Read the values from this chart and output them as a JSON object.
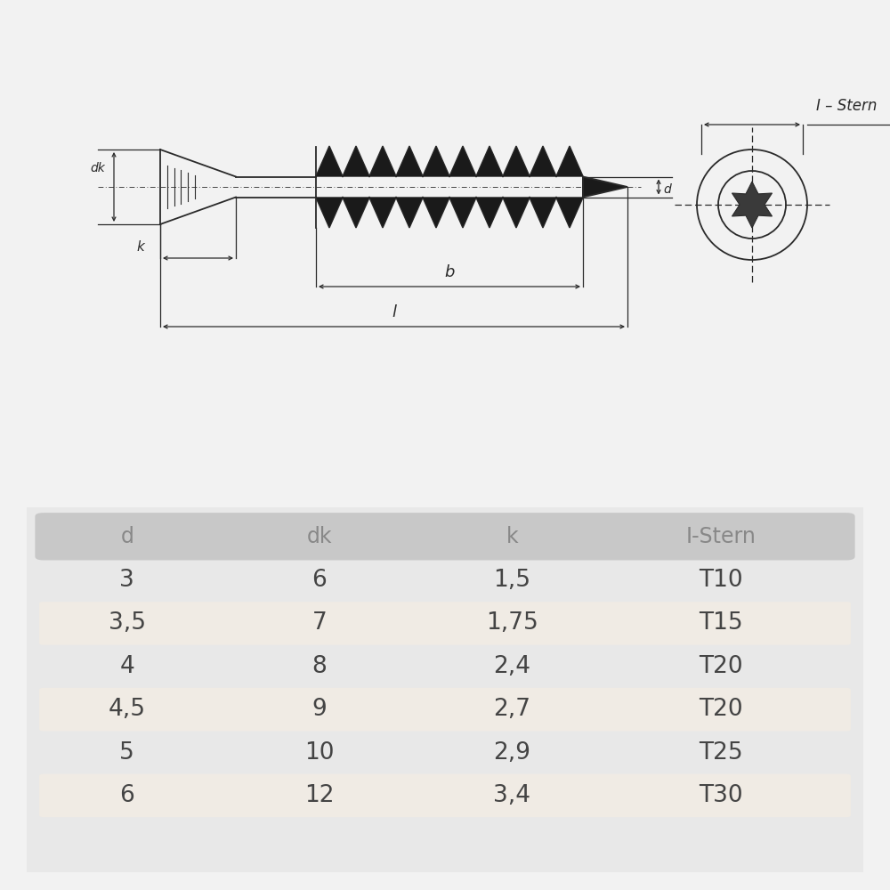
{
  "bg_color": "#f2f2f2",
  "drawing_bg": "#ffffff",
  "table_row_alt": "#f0ebe4",
  "header_bg": "#c8c8c8",
  "table_outer_bg": "#d0d0d0",
  "table_inner_bg": "#e8e8e8",
  "header_text_color": "#888888",
  "row_text_color": "#444444",
  "line_color": "#2a2a2a",
  "table_headers": [
    "d",
    "dk",
    "k",
    "I-Stern"
  ],
  "table_rows": [
    [
      "3",
      "6",
      "1,5",
      "T10"
    ],
    [
      "3,5",
      "7",
      "1,75",
      "T15"
    ],
    [
      "4",
      "8",
      "2,4",
      "T20"
    ],
    [
      "4,5",
      "9",
      "2,7",
      "T20"
    ],
    [
      "5",
      "10",
      "2,9",
      "T25"
    ],
    [
      "6",
      "12",
      "3,4",
      "T30"
    ]
  ],
  "label_dk": "dk",
  "label_k": "k",
  "label_b": "b",
  "label_l": "l",
  "label_d": "d",
  "label_istern": "I – Stern"
}
